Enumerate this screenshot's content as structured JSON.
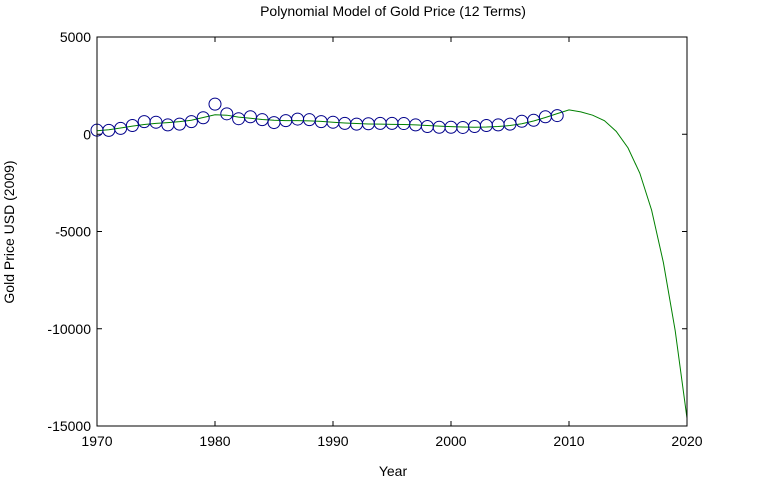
{
  "colors": {
    "background": "#ffffff",
    "axes": "#000000",
    "observed_marker": "#00008b",
    "model_line": "#008000"
  },
  "chart_data": {
    "type": "line",
    "title": "Polynomial Model of Gold Price (12 Terms)",
    "xlabel": "Year",
    "ylabel": "Gold Price USD (2009)",
    "xlim": [
      1970,
      2020
    ],
    "ylim": [
      -15000,
      5000
    ],
    "x_ticks": [
      1970,
      1980,
      1990,
      2000,
      2010,
      2020
    ],
    "y_ticks": [
      5000,
      0,
      -5000,
      -10000,
      -15000
    ],
    "grid": false,
    "legend": "none",
    "series": [
      {
        "marker": "circle",
        "x": [
          1970,
          1971,
          1972,
          1973,
          1974,
          1975,
          1976,
          1977,
          1978,
          1979,
          1980,
          1981,
          1982,
          1983,
          1984,
          1985,
          1986,
          1987,
          1988,
          1989,
          1990,
          1991,
          1992,
          1993,
          1994,
          1995,
          1996,
          1997,
          1998,
          1999,
          2000,
          2001,
          2002,
          2003,
          2004,
          2005,
          2006,
          2007,
          2008,
          2009
        ],
        "values": [
          210,
          200,
          300,
          450,
          650,
          620,
          480,
          520,
          650,
          850,
          1550,
          1050,
          800,
          900,
          750,
          600,
          700,
          780,
          750,
          650,
          620,
          560,
          520,
          540,
          560,
          560,
          550,
          480,
          400,
          360,
          360,
          350,
          400,
          450,
          480,
          520,
          670,
          720,
          900,
          960
        ]
      },
      {
        "marker": "none",
        "x": [
          1970,
          1971,
          1972,
          1973,
          1974,
          1975,
          1976,
          1977,
          1978,
          1979,
          1980,
          1981,
          1982,
          1983,
          1984,
          1985,
          1986,
          1987,
          1988,
          1989,
          1990,
          1991,
          1992,
          1993,
          1994,
          1995,
          1996,
          1997,
          1998,
          1999,
          2000,
          2001,
          2002,
          2003,
          2004,
          2005,
          2006,
          2007,
          2008,
          2009,
          2010,
          2011,
          2012,
          2013,
          2014,
          2015,
          2016,
          2017,
          2018,
          2019,
          2020
        ],
        "values": [
          180,
          230,
          320,
          420,
          500,
          560,
          600,
          650,
          720,
          860,
          1000,
          980,
          880,
          820,
          760,
          720,
          700,
          700,
          690,
          660,
          620,
          580,
          550,
          530,
          520,
          510,
          500,
          480,
          450,
          420,
          390,
          370,
          360,
          370,
          400,
          450,
          540,
          680,
          860,
          1060,
          1250,
          1150,
          980,
          700,
          150,
          -700,
          -2000,
          -3900,
          -6600,
          -10100,
          -14600
        ]
      }
    ]
  }
}
